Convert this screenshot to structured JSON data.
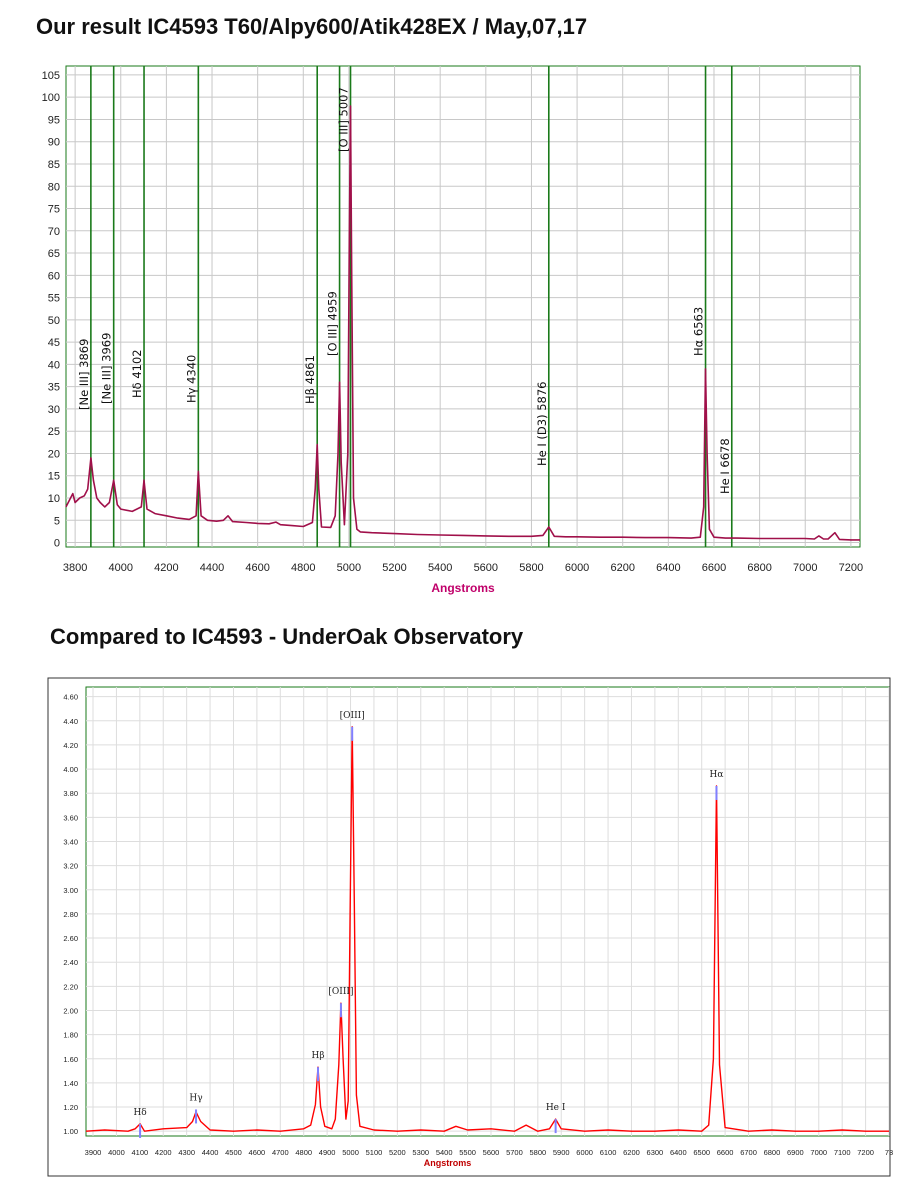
{
  "titles": {
    "top": "Our result IC4593 T60/Alpy600/Atik428EX / May,07,17",
    "bottom": "Compared to IC4593 - UnderOak Observatory"
  },
  "colors": {
    "top_series": "#a0104a",
    "bottom_series": "#ff0000",
    "line_markers": "#1a7a1a",
    "grid": "#c8c8c8",
    "axis_label": "#c0006a",
    "bottom_marker": "#8080ff"
  },
  "chart_data": [
    {
      "type": "line",
      "title": "",
      "xlabel": "Angstroms",
      "ylabel": "",
      "xlim": [
        3760,
        7240
      ],
      "ylim": [
        -1,
        107
      ],
      "x_ticks": [
        "3800",
        "4000",
        "4200",
        "4400",
        "4600",
        "4800",
        "5000",
        "5200",
        "5400",
        "5600",
        "5800",
        "6000",
        "6200",
        "6400",
        "6600",
        "6800",
        "7000",
        "7200"
      ],
      "y_ticks": [
        "0",
        "5",
        "10",
        "15",
        "20",
        "25",
        "30",
        "35",
        "40",
        "45",
        "50",
        "55",
        "60",
        "65",
        "70",
        "75",
        "80",
        "85",
        "90",
        "95",
        "100",
        "105"
      ],
      "grid": true,
      "line_markers": [
        {
          "x": 3869,
          "label": "[Ne III] 3869"
        },
        {
          "x": 3969,
          "label": "[Ne III] 3969"
        },
        {
          "x": 4102,
          "label": "Hδ 4102"
        },
        {
          "x": 4340,
          "label": "Hγ 4340"
        },
        {
          "x": 4861,
          "label": "Hβ 4861"
        },
        {
          "x": 4959,
          "label": "[O III] 4959"
        },
        {
          "x": 5007,
          "label": "[O III] 5007"
        },
        {
          "x": 5876,
          "label": "He I (D3) 5876"
        },
        {
          "x": 6563,
          "label": "Hα 6563"
        },
        {
          "x": 6678,
          "label": "He I 6678"
        }
      ],
      "series": [
        {
          "x": [
            3760,
            3790,
            3800,
            3820,
            3840,
            3855,
            3869,
            3880,
            3895,
            3910,
            3930,
            3950,
            3969,
            3985,
            4000,
            4050,
            4090,
            4102,
            4115,
            4150,
            4200,
            4250,
            4300,
            4330,
            4340,
            4352,
            4380,
            4420,
            4450,
            4470,
            4490,
            4550,
            4600,
            4650,
            4680,
            4700,
            4750,
            4800,
            4840,
            4852,
            4861,
            4868,
            4880,
            4920,
            4940,
            4952,
            4959,
            4966,
            4980,
            4995,
            5002,
            5007,
            5012,
            5020,
            5035,
            5050,
            5100,
            5200,
            5300,
            5400,
            5500,
            5600,
            5700,
            5800,
            5850,
            5876,
            5900,
            5950,
            6000,
            6100,
            6200,
            6300,
            6400,
            6500,
            6540,
            6555,
            6563,
            6570,
            6580,
            6600,
            6650,
            6700,
            6800,
            6900,
            7000,
            7040,
            7060,
            7080,
            7100,
            7130,
            7150,
            7200,
            7240
          ],
          "values": [
            8,
            11,
            9,
            10,
            10.5,
            12,
            19,
            14,
            10,
            9,
            8,
            9,
            14,
            8.5,
            7.5,
            7,
            8,
            14,
            7.5,
            6.5,
            6,
            5.5,
            5.2,
            6,
            16,
            6,
            5,
            4.8,
            5,
            6,
            4.7,
            4.5,
            4.3,
            4.2,
            4.6,
            4.0,
            3.8,
            3.6,
            4.5,
            12,
            22,
            12,
            3.5,
            3.4,
            6,
            20,
            36,
            18,
            4,
            20,
            70,
            98,
            60,
            10,
            3,
            2.4,
            2.2,
            2.0,
            1.8,
            1.7,
            1.6,
            1.5,
            1.4,
            1.4,
            1.6,
            3.5,
            1.4,
            1.3,
            1.3,
            1.2,
            1.2,
            1.1,
            1.1,
            1.0,
            1.2,
            8,
            39,
            20,
            3,
            1.2,
            1.0,
            1.0,
            0.9,
            0.9,
            0.9,
            0.8,
            1.5,
            0.8,
            0.8,
            2.2,
            0.7,
            0.6,
            0.6
          ]
        }
      ]
    },
    {
      "type": "line",
      "title": "",
      "xlabel": "Angstroms",
      "ylabel": "",
      "xlim": [
        3870,
        7300
      ],
      "ylim": [
        0.96,
        4.68
      ],
      "x_ticks": [
        "3900",
        "4000",
        "4100",
        "4200",
        "4300",
        "4400",
        "4500",
        "4600",
        "4700",
        "4800",
        "4900",
        "5000",
        "5100",
        "5200",
        "5300",
        "5400",
        "5500",
        "5600",
        "5700",
        "5800",
        "5900",
        "6000",
        "6100",
        "6200",
        "6300",
        "6400",
        "6500",
        "6600",
        "6700",
        "6800",
        "6900",
        "7000",
        "7100",
        "7200",
        "73"
      ],
      "y_ticks": [
        "1.00",
        "1.20",
        "1.40",
        "1.60",
        "1.80",
        "2.00",
        "2.20",
        "2.40",
        "2.60",
        "2.80",
        "3.00",
        "3.20",
        "3.40",
        "3.60",
        "3.80",
        "4.00",
        "4.20",
        "4.40",
        "4.60"
      ],
      "grid": true,
      "line_labels": [
        {
          "x": 4101,
          "y": 1.06,
          "label": "Hδ"
        },
        {
          "x": 4340,
          "y": 1.18,
          "label": "Hγ"
        },
        {
          "x": 4861,
          "y": 1.53,
          "label": "Hβ"
        },
        {
          "x": 4959,
          "y": 2.06,
          "label": "[OIII]"
        },
        {
          "x": 5007,
          "y": 4.35,
          "label": "[OIII]"
        },
        {
          "x": 5876,
          "y": 1.1,
          "label": "He I"
        },
        {
          "x": 6563,
          "y": 3.86,
          "label": "Hα"
        }
      ],
      "series": [
        {
          "x": [
            3870,
            3950,
            4050,
            4080,
            4101,
            4120,
            4200,
            4300,
            4325,
            4340,
            4360,
            4400,
            4500,
            4600,
            4700,
            4800,
            4830,
            4850,
            4861,
            4872,
            4890,
            4920,
            4935,
            4950,
            4959,
            4968,
            4980,
            4990,
            4998,
            5007,
            5016,
            5025,
            5040,
            5100,
            5200,
            5300,
            5400,
            5450,
            5500,
            5600,
            5700,
            5750,
            5800,
            5850,
            5876,
            5900,
            6000,
            6100,
            6200,
            6300,
            6400,
            6500,
            6530,
            6550,
            6563,
            6576,
            6600,
            6700,
            6800,
            6900,
            7000,
            7100,
            7200,
            7300
          ],
          "values": [
            1.0,
            1.01,
            1.0,
            1.02,
            1.06,
            1.0,
            1.02,
            1.03,
            1.08,
            1.16,
            1.08,
            1.01,
            1.0,
            1.01,
            1.0,
            1.02,
            1.05,
            1.22,
            1.53,
            1.2,
            1.04,
            1.02,
            1.1,
            1.55,
            2.06,
            1.6,
            1.1,
            1.25,
            2.8,
            4.35,
            2.9,
            1.3,
            1.04,
            1.01,
            1.0,
            1.01,
            1.0,
            1.04,
            1.01,
            1.02,
            1.0,
            1.05,
            1.0,
            1.02,
            1.1,
            1.02,
            1.0,
            1.01,
            1.0,
            1.0,
            1.01,
            1.0,
            1.05,
            1.6,
            3.86,
            1.55,
            1.03,
            1.0,
            1.01,
            1.0,
            1.0,
            1.01,
            1.0,
            1.0
          ]
        }
      ]
    }
  ]
}
